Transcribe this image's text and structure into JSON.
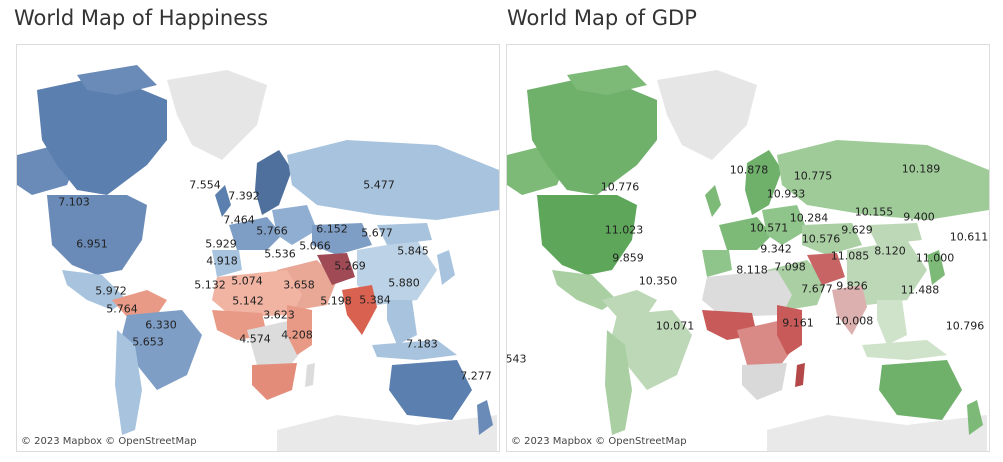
{
  "panels": [
    {
      "title": "World Map of Happiness",
      "attribution": "© 2023 Mapbox  © OpenStreetMap",
      "labels": [
        "7.103",
        "6.951",
        "7.554",
        "7.392",
        "7.464",
        "5.929",
        "5.766",
        "5.536",
        "6.152",
        "5.066",
        "5.677",
        "5.477",
        "5.845",
        "4.918",
        "5.269",
        "5.880",
        "5.132",
        "5.074",
        "5.142",
        "3.658",
        "5.198",
        "5.384",
        "3.623",
        "4.208",
        "4.574",
        "5.972",
        "5.764",
        "6.330",
        "5.653",
        "7.183",
        "7.277"
      ]
    },
    {
      "title": "World Map of GDP",
      "attribution": "© 2023 Mapbox  © OpenStreetMap",
      "labels": [
        "10.776",
        "11.023",
        "10.878",
        "10.775",
        "10.933",
        "10.189",
        "10.571",
        "10.284",
        "10.155",
        "9.400",
        "10.611",
        "9.342",
        "10.576",
        "9.629",
        "11.085",
        "8.120",
        "11.000",
        "8.118",
        "7.098",
        "9.859",
        "10.350",
        "9.826",
        "11.488",
        "7.677",
        "9.161",
        "10.008",
        "10.071",
        "10.796",
        "543"
      ]
    }
  ],
  "colors": {
    "land_neutral": "#e6e6e6",
    "happy_high": "#5b7fae",
    "happy_mid": "#a7c3de",
    "happy_low": "#d8614f",
    "gdp_high": "#6fb06b",
    "gdp_mid": "#bcd8b6",
    "gdp_low": "#c85a5a"
  }
}
